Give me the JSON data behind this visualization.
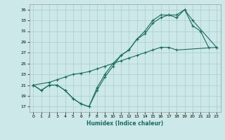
{
  "xlabel": "Humidex (Indice chaleur)",
  "bg_color": "#cce8e8",
  "grid_color": "#aacccc",
  "line_color": "#1a6b60",
  "xlim": [
    -0.5,
    23.5
  ],
  "ylim": [
    16.0,
    36.0
  ],
  "yticks": [
    17,
    19,
    21,
    23,
    25,
    27,
    29,
    31,
    33,
    35
  ],
  "xticks": [
    0,
    1,
    2,
    3,
    4,
    5,
    6,
    7,
    8,
    9,
    10,
    11,
    12,
    13,
    14,
    15,
    16,
    17,
    18,
    19,
    20,
    21,
    22,
    23
  ],
  "s1x": [
    0,
    1,
    2,
    3,
    4,
    5,
    6,
    7,
    8,
    9,
    10,
    11,
    12,
    13,
    14,
    15,
    16,
    17,
    18,
    19,
    20,
    21,
    22
  ],
  "s1y": [
    21,
    20,
    21,
    21,
    20,
    18.5,
    17.5,
    17,
    20,
    22.5,
    24.5,
    26.5,
    27.5,
    29.5,
    30.5,
    32.5,
    33.5,
    34,
    33.5,
    35,
    32,
    31,
    28
  ],
  "s2x": [
    0,
    1,
    2,
    3,
    4,
    5,
    6,
    7,
    8,
    9,
    10,
    11,
    12,
    13,
    14,
    15,
    16,
    17,
    18,
    19,
    20,
    23
  ],
  "s2y": [
    21,
    20,
    21,
    21,
    20,
    18.5,
    17.5,
    17,
    20.5,
    23,
    25,
    26.5,
    27.5,
    29.5,
    31,
    33,
    34,
    34,
    34,
    35,
    33,
    28
  ],
  "s3x": [
    0,
    2,
    3,
    4,
    5,
    6,
    7,
    8,
    9,
    10,
    11,
    12,
    13,
    14,
    15,
    16,
    17,
    18,
    23
  ],
  "s3y": [
    21,
    21.5,
    22,
    22.5,
    23,
    23.2,
    23.5,
    24,
    24.5,
    25,
    25.5,
    26,
    26.5,
    27,
    27.5,
    28,
    28,
    27.5,
    28
  ]
}
